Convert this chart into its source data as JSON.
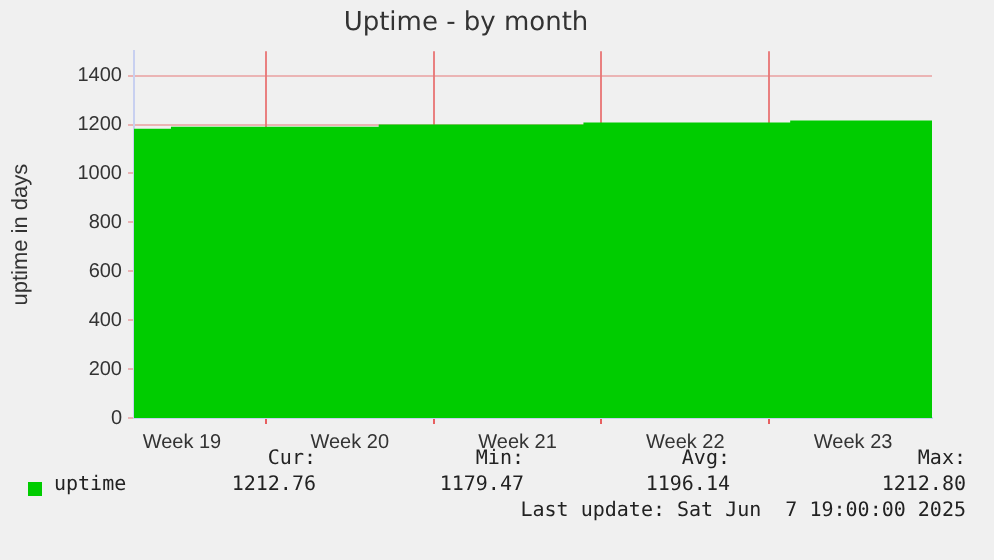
{
  "chart_data": {
    "type": "area",
    "title": "Uptime - by month",
    "ylabel": "uptime in days",
    "x": [
      "2025-05-05T12:00",
      "2025-05-07T02:00",
      "2025-05-07T02:00",
      "2025-05-15T18:00",
      "2025-05-15T18:00",
      "2025-05-24T07:00",
      "2025-05-24T07:00",
      "2025-06-01T22:00",
      "2025-06-01T22:00",
      "2025-06-07T19:00"
    ],
    "series": [
      {
        "name": "uptime",
        "color": "#00cc00",
        "values": [
          1179,
          1179,
          1187,
          1187,
          1196,
          1196,
          1204,
          1204,
          1213,
          1213
        ]
      }
    ],
    "xlim": [
      "2025-05-05T12:00",
      "2025-06-07T19:00"
    ],
    "xticks": [
      {
        "value": "2025-05-07T12:00",
        "label": "Week 19"
      },
      {
        "value": "2025-05-11",
        "label": null
      },
      {
        "value": "2025-05-14T12:00",
        "label": "Week 20"
      },
      {
        "value": "2025-05-18",
        "label": null
      },
      {
        "value": "2025-05-21T12:00",
        "label": "Week 21"
      },
      {
        "value": "2025-05-25",
        "label": null
      },
      {
        "value": "2025-05-28T12:00",
        "label": "Week 22"
      },
      {
        "value": "2025-06-01",
        "label": null
      },
      {
        "value": "2025-06-04T12:00",
        "label": "Week 23"
      }
    ],
    "ylim": [
      0,
      1500
    ],
    "yticks": [
      0,
      200,
      400,
      600,
      800,
      1000,
      1200,
      1400
    ],
    "grid": true,
    "legend": "bottom left",
    "annotations": [
      "Cur:",
      "Min:",
      "Avg:",
      "Max:",
      "1212.76",
      "1179.47",
      "1196.14",
      "1212.80",
      "Last update: Sat Jun  7 19:00:00 2025"
    ]
  }
}
